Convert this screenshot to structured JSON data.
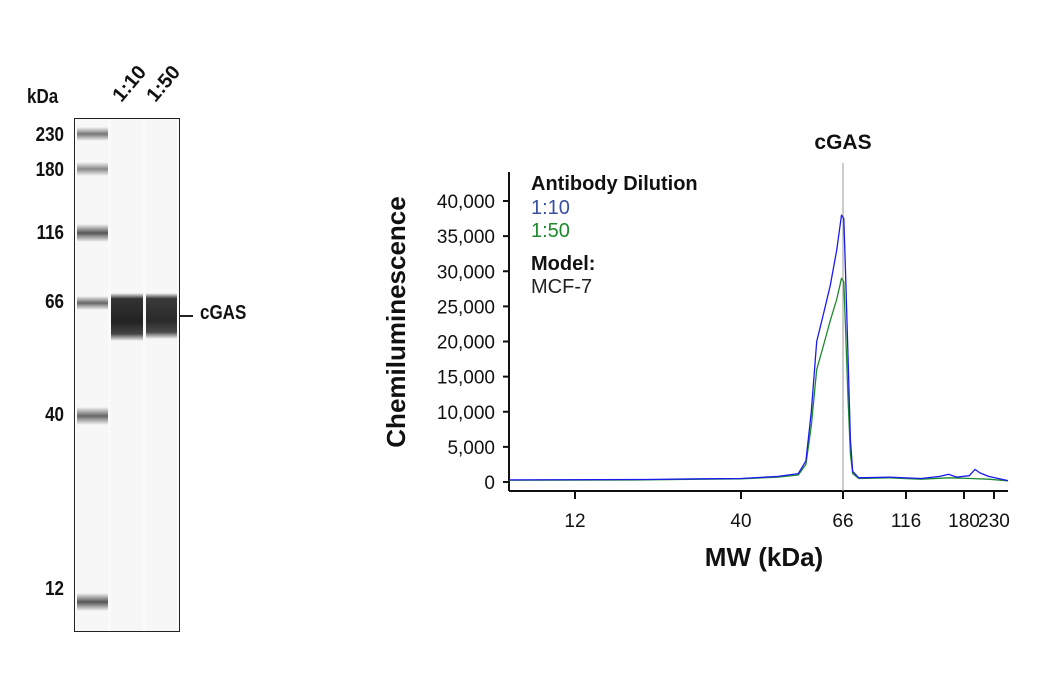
{
  "blot": {
    "unit_label": "kDa",
    "lanes": [
      "1:10",
      "1:50"
    ],
    "markers": [
      "230",
      "180",
      "116",
      "66",
      "40",
      "12"
    ],
    "target_label": "cGAS"
  },
  "chart_data": {
    "type": "line",
    "title": "cGAS",
    "xlabel": "MW (kDa)",
    "ylabel": "Chemiluminescence",
    "x_ticks": [
      12,
      40,
      66,
      116,
      180,
      230
    ],
    "x_tick_labels": [
      "12",
      "40",
      "66",
      "116",
      "180",
      "230"
    ],
    "y_ticks": [
      0,
      5000,
      10000,
      15000,
      20000,
      25000,
      30000,
      35000,
      40000
    ],
    "y_tick_labels": [
      "0",
      "5,000",
      "10,000",
      "15,000",
      "20,000",
      "25,000",
      "30,000",
      "35,000",
      "40,000"
    ],
    "xlim": [
      7.4,
      258
    ],
    "ylim": [
      0,
      40000
    ],
    "grid": false,
    "reference_line_x": 66,
    "legend": {
      "title": "Antibody Dilution",
      "placement": "top-left",
      "model_title": "Model:",
      "model_value": "MCF-7"
    },
    "series": [
      {
        "name": "1:10",
        "color": "#1a1aee",
        "label_color": "#3a4fa0",
        "points": [
          [
            7.4,
            300
          ],
          [
            20,
            350
          ],
          [
            30,
            450
          ],
          [
            40,
            500
          ],
          [
            48,
            800
          ],
          [
            53,
            1200
          ],
          [
            55,
            3000
          ],
          [
            56.5,
            10000
          ],
          [
            58,
            20000
          ],
          [
            60,
            24000
          ],
          [
            62,
            28000
          ],
          [
            64,
            33000
          ],
          [
            65.5,
            38000
          ],
          [
            66.5,
            37500
          ],
          [
            67.5,
            30000
          ],
          [
            69,
            18000
          ],
          [
            70.5,
            6000
          ],
          [
            72,
            1500
          ],
          [
            76,
            600
          ],
          [
            100,
            700
          ],
          [
            130,
            500
          ],
          [
            150,
            800
          ],
          [
            160,
            1100
          ],
          [
            170,
            700
          ],
          [
            188,
            900
          ],
          [
            197,
            1800
          ],
          [
            205,
            1300
          ],
          [
            220,
            800
          ],
          [
            258,
            200
          ]
        ]
      },
      {
        "name": "1:50",
        "color": "#1e8a2e",
        "label_color": "#1e8a2e",
        "points": [
          [
            7.4,
            250
          ],
          [
            20,
            300
          ],
          [
            30,
            400
          ],
          [
            40,
            450
          ],
          [
            48,
            700
          ],
          [
            53,
            1000
          ],
          [
            55,
            2500
          ],
          [
            56.5,
            8000
          ],
          [
            58,
            16000
          ],
          [
            60,
            19500
          ],
          [
            62,
            23000
          ],
          [
            64,
            26000
          ],
          [
            65.5,
            29000
          ],
          [
            66.5,
            28500
          ],
          [
            67.5,
            22000
          ],
          [
            69,
            12000
          ],
          [
            70.5,
            4000
          ],
          [
            72,
            1200
          ],
          [
            76,
            500
          ],
          [
            100,
            600
          ],
          [
            130,
            400
          ],
          [
            160,
            600
          ],
          [
            190,
            500
          ],
          [
            220,
            400
          ],
          [
            258,
            150
          ]
        ]
      }
    ]
  }
}
